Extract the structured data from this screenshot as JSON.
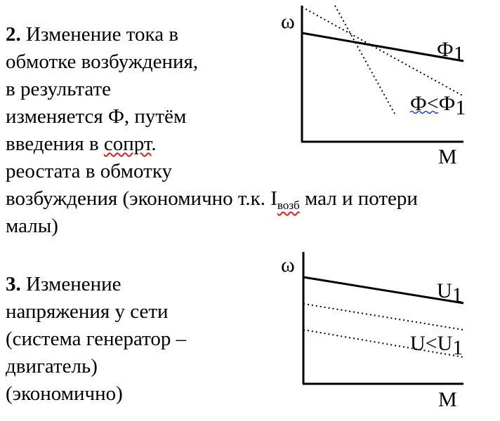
{
  "section2": {
    "number": "2.",
    "line1": " Изменение тока в",
    "line2": "обмотке возбуждения,",
    "line3": "в результате",
    "line4": "изменяется Ф, путём",
    "line5_a": "введения в ",
    "line5_b": "сопрт",
    "line5_c": ".",
    "line6": "реостата в обмотку",
    "line7_a": "возбуждения (экономично т.к. I",
    "line7_sub": "возб",
    "line7_b": " мал и потери",
    "line8": "малы)"
  },
  "graph1": {
    "y_label": "ω",
    "x_label": "М",
    "curve1_label": "Ф",
    "curve1_sub": "1",
    "curve2_label": "Ф<Ф",
    "curve2_sub": "1"
  },
  "section3": {
    "number": "3.",
    "line1": " Изменение",
    "line2": "напряжения у сети",
    "line3": "(система генератор –",
    "line4": "двигатель)",
    "line5": "(экономично)"
  },
  "graph2": {
    "y_label": "ω",
    "x_label": "М",
    "curve1_label": "U",
    "curve1_sub": "1",
    "curve2_label": "U<U",
    "curve2_sub": "1"
  },
  "colors": {
    "text": "#000000",
    "spell_red": "#e02020",
    "spell_blue": "#2040e0"
  }
}
